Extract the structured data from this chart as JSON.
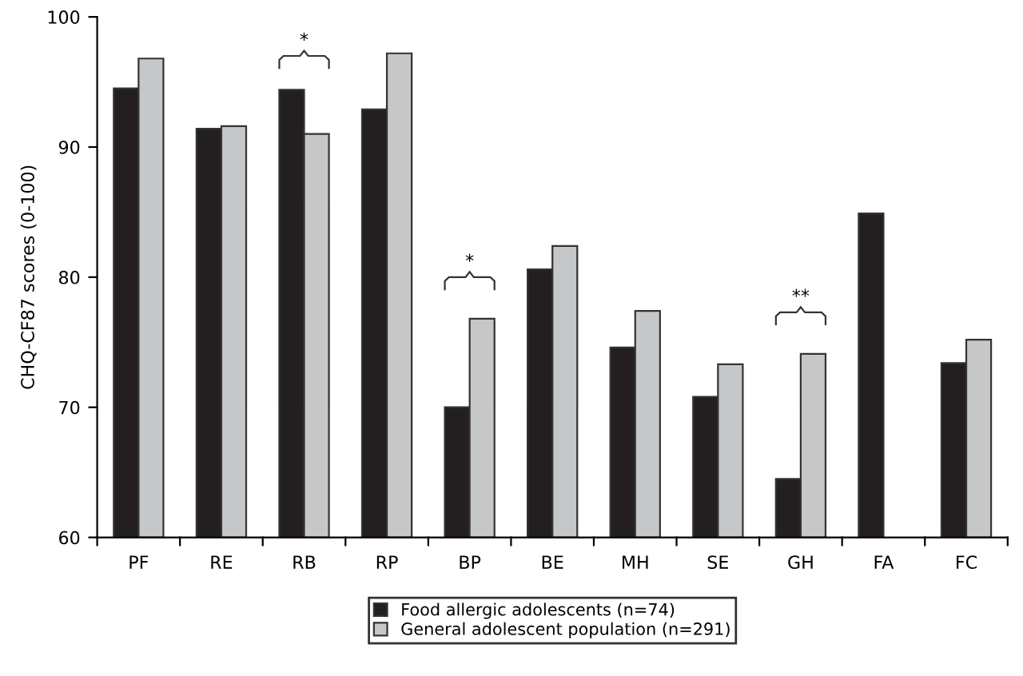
{
  "chart_data": {
    "type": "bar",
    "ylabel": "CHQ-CF87 scores (0-100)",
    "categories": [
      "PF",
      "RE",
      "RB",
      "RP",
      "BP",
      "BE",
      "MH",
      "SE",
      "GH",
      "FA",
      "FC"
    ],
    "series": [
      {
        "name": "Food allergic adolescents (n=74)",
        "color": "#231f20",
        "values": [
          94.5,
          91.4,
          94.4,
          92.9,
          70.0,
          80.6,
          74.6,
          70.8,
          64.5,
          84.9,
          73.4
        ]
      },
      {
        "name": "General adolescent population (n=291)",
        "color": "#c6c7c8",
        "values": [
          96.8,
          91.6,
          91.0,
          97.2,
          76.8,
          82.4,
          77.4,
          73.3,
          74.1,
          null,
          75.2
        ]
      }
    ],
    "annotations": [
      "*",
      "*",
      "**"
    ],
    "ylim": [
      60,
      100
    ],
    "yticks": [
      60,
      70,
      80,
      90,
      100
    ],
    "grid": false,
    "legend": "bottom"
  }
}
